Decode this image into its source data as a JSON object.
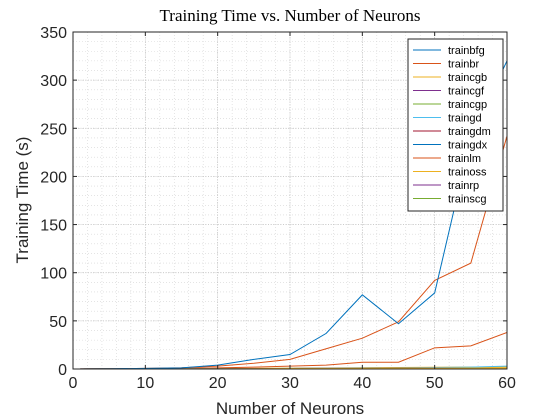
{
  "chart_data": {
    "type": "line",
    "title": "Training Time vs. Number of Neurons",
    "xlabel": "Number of Neurons",
    "ylabel": "Training Time (s)",
    "xlim": [
      0,
      60
    ],
    "ylim": [
      0,
      350
    ],
    "xticks": [
      "0",
      "10",
      "20",
      "30",
      "40",
      "50",
      "60"
    ],
    "yticks": [
      "0",
      "50",
      "100",
      "150",
      "200",
      "250",
      "300",
      "350"
    ],
    "grid": "on (major and minor, dotted)",
    "legend_position": "top-right",
    "x": [
      1,
      5,
      10,
      15,
      20,
      25,
      30,
      35,
      40,
      45,
      50,
      55,
      60
    ],
    "series": [
      {
        "name": "trainbfg",
        "color": "#0072bd",
        "values": [
          0.1,
          0.3,
          0.6,
          1.2,
          4,
          10,
          15,
          37,
          77,
          47,
          79,
          240,
          320
        ]
      },
      {
        "name": "trainbr",
        "color": "#d95319",
        "values": [
          0.1,
          0.3,
          0.6,
          1.3,
          3,
          6,
          10,
          21,
          32,
          49,
          92,
          110,
          242
        ]
      },
      {
        "name": "traincgb",
        "color": "#edb120",
        "values": [
          0.05,
          0.1,
          0.15,
          0.2,
          0.3,
          0.4,
          0.5,
          0.6,
          0.7,
          0.8,
          0.9,
          1,
          1.1
        ]
      },
      {
        "name": "traincgf",
        "color": "#7e2f8e",
        "values": [
          0.05,
          0.1,
          0.15,
          0.2,
          0.3,
          0.4,
          0.5,
          0.6,
          0.7,
          0.8,
          0.9,
          1,
          1.1
        ]
      },
      {
        "name": "traincgp",
        "color": "#77ac30",
        "values": [
          0.05,
          0.1,
          0.15,
          0.2,
          0.3,
          0.4,
          0.5,
          0.6,
          0.7,
          0.8,
          0.9,
          1,
          1.1
        ]
      },
      {
        "name": "traingd",
        "color": "#4dbeee",
        "values": [
          0.05,
          0.1,
          0.15,
          0.2,
          0.3,
          0.4,
          0.6,
          0.8,
          1,
          1.2,
          1.5,
          2,
          3
        ]
      },
      {
        "name": "traingdm",
        "color": "#a2142f",
        "values": [
          0.05,
          0.1,
          0.15,
          0.2,
          0.3,
          0.4,
          0.5,
          0.6,
          0.7,
          0.8,
          0.9,
          1,
          1
        ]
      },
      {
        "name": "traingdx",
        "color": "#0072bd",
        "values": [
          0.05,
          0.1,
          0.15,
          0.2,
          0.3,
          0.4,
          0.5,
          0.6,
          0.7,
          0.8,
          0.9,
          1,
          1
        ]
      },
      {
        "name": "trainlm",
        "color": "#d95319",
        "values": [
          0.1,
          0.2,
          0.4,
          0.8,
          1.2,
          2,
          3,
          4,
          7,
          7,
          22,
          24,
          38
        ]
      },
      {
        "name": "trainoss",
        "color": "#edb120",
        "values": [
          0.05,
          0.1,
          0.2,
          0.3,
          0.5,
          0.7,
          0.9,
          1.1,
          1.3,
          1.5,
          1.8,
          2,
          2.2
        ]
      },
      {
        "name": "trainrp",
        "color": "#7e2f8e",
        "values": [
          0.05,
          0.1,
          0.15,
          0.2,
          0.3,
          0.4,
          0.5,
          0.6,
          0.7,
          0.8,
          0.9,
          1,
          1
        ]
      },
      {
        "name": "trainscg",
        "color": "#77ac30",
        "values": [
          0.05,
          0.1,
          0.15,
          0.2,
          0.3,
          0.4,
          0.5,
          0.6,
          0.7,
          0.8,
          0.9,
          1,
          1.1
        ]
      }
    ]
  }
}
